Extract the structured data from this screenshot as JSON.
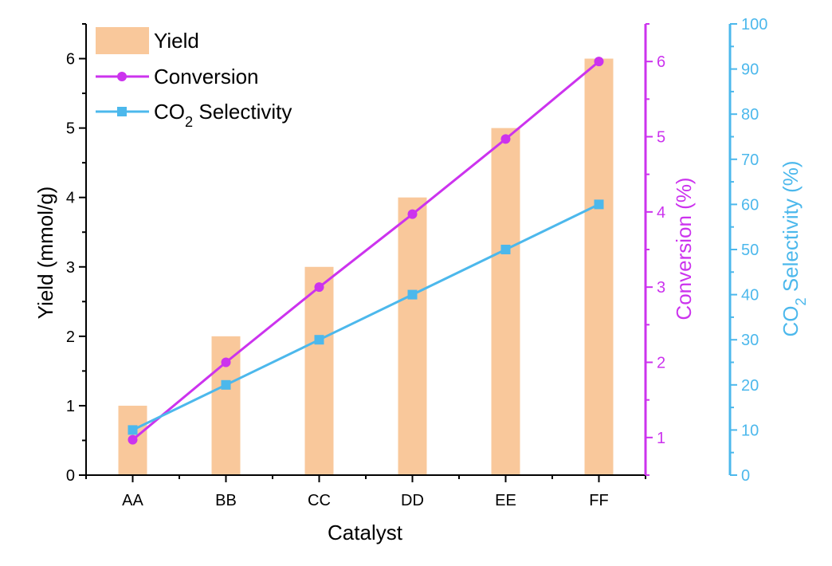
{
  "chart_data": {
    "type": "bar",
    "xlabel": "Catalyst",
    "categories": [
      "AA",
      "BB",
      "CC",
      "DD",
      "EE",
      "FF"
    ],
    "series": [
      {
        "name": "Yield",
        "kind": "bar",
        "axis": "left",
        "color": "#f9c89b",
        "values": [
          1,
          2,
          3,
          4,
          5,
          6
        ]
      },
      {
        "name": "Conversion",
        "kind": "line",
        "marker": "circle",
        "axis": "right1",
        "color": "#cc33ee",
        "values": [
          0.97,
          2.0,
          3.0,
          3.97,
          4.97,
          6.0
        ]
      },
      {
        "name": "CO2 Selectivity",
        "kind": "line",
        "marker": "square",
        "axis": "right2",
        "color": "#4cb8ec",
        "values": [
          10,
          20,
          30,
          40,
          50,
          60
        ]
      }
    ],
    "axes": {
      "left": {
        "label": "Yield (mmol/g)",
        "range": [
          0,
          6.5
        ],
        "ticks": [
          "0",
          "1",
          "2",
          "3",
          "4",
          "5",
          "6"
        ],
        "color": "#000000"
      },
      "right1": {
        "label": "Conversion (%)",
        "range": [
          0.5,
          6.5
        ],
        "ticks": [
          "1",
          "2",
          "3",
          "4",
          "5",
          "6"
        ],
        "color": "#cc33ee"
      },
      "right2": {
        "label_parts": [
          "CO",
          "2",
          " Selectivity (%)"
        ],
        "range": [
          0,
          100
        ],
        "ticks": [
          "0",
          "10",
          "20",
          "30",
          "40",
          "50",
          "60",
          "70",
          "80",
          "90",
          "100"
        ],
        "color": "#4cb8ec"
      }
    },
    "legend": {
      "position": "top-left",
      "entries": [
        {
          "label_parts": [
            "Yield"
          ]
        },
        {
          "label_parts": [
            "Conversion"
          ]
        },
        {
          "label_parts": [
            "CO",
            "2",
            " Selectivity"
          ]
        }
      ]
    },
    "grid": false
  }
}
